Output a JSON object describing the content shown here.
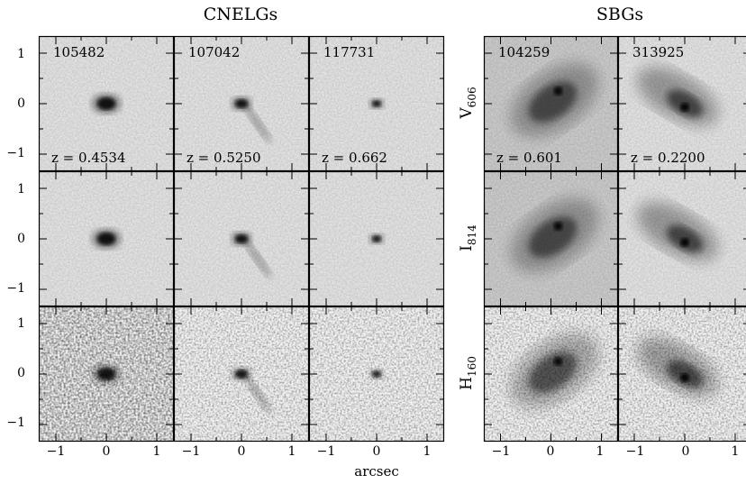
{
  "figure": {
    "groups": [
      {
        "title": "CNELGs",
        "ids": [
          "105482",
          "107042",
          "117731"
        ],
        "redshifts": [
          "z = 0.4534",
          "z = 0.5250",
          "z = 0.662"
        ]
      },
      {
        "title": "SBGs",
        "ids": [
          "104259",
          "313925"
        ],
        "redshifts": [
          "z = 0.601",
          "z = 0.2200"
        ]
      }
    ],
    "band_labels": [
      {
        "base": "V",
        "sub": "606"
      },
      {
        "base": "I",
        "sub": "814"
      },
      {
        "base": "H",
        "sub": "160"
      }
    ],
    "tick_labels": [
      "−1",
      "0",
      "1"
    ],
    "xlabel": "arcsec",
    "colormap": "inverted grayscale"
  }
}
